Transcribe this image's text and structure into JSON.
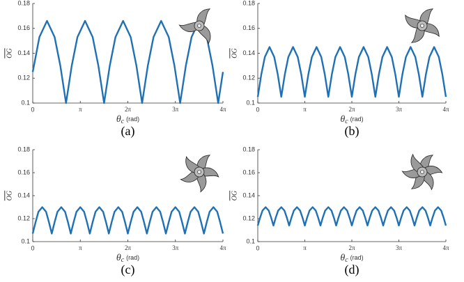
{
  "chart_data": [
    {
      "type": "line",
      "caption": "(a)",
      "ylabel": "OG",
      "xlabel": {
        "symbol": "θ",
        "subscript": "c",
        "unit": "(rad)"
      },
      "color": "#1f70b4",
      "xlim": [
        0,
        4
      ],
      "ylim": [
        0.1,
        0.18
      ],
      "xticks": [
        0,
        {
          "value": 1,
          "label": "π"
        },
        {
          "value": 2,
          "label": "2π"
        },
        {
          "value": 3,
          "label": "3π"
        },
        {
          "value": 4,
          "label": "4π"
        }
      ],
      "yticks": [
        0.1,
        0.12,
        0.14,
        0.16,
        0.18
      ],
      "x": [
        0,
        0.14,
        0.3,
        0.46,
        0.58,
        0.7,
        0.82,
        0.94,
        1.1,
        1.26,
        1.38,
        1.5,
        1.62,
        1.74,
        1.9,
        2.06,
        2.18,
        2.3,
        2.42,
        2.54,
        2.7,
        2.86,
        2.98,
        3.1,
        3.22,
        3.34,
        3.5,
        3.66,
        3.78,
        3.9,
        4
      ],
      "values": [
        0.125,
        0.153,
        0.166,
        0.153,
        0.13,
        0.1,
        0.13,
        0.153,
        0.166,
        0.153,
        0.13,
        0.1,
        0.13,
        0.153,
        0.166,
        0.153,
        0.13,
        0.1,
        0.13,
        0.153,
        0.166,
        0.153,
        0.13,
        0.1,
        0.13,
        0.153,
        0.166,
        0.153,
        0.13,
        0.1,
        0.125
      ]
    },
    {
      "type": "line",
      "caption": "(b)",
      "ylabel": "OG",
      "xlabel": {
        "symbol": "θ",
        "subscript": "c",
        "unit": "(rad)"
      },
      "color": "#1f70b4",
      "xlim": [
        0,
        4
      ],
      "ylim": [
        0.1,
        0.18
      ],
      "xticks": [
        0,
        {
          "value": 1,
          "label": "π"
        },
        {
          "value": 2,
          "label": "2π"
        },
        {
          "value": 3,
          "label": "3π"
        },
        {
          "value": 4,
          "label": "4π"
        }
      ],
      "yticks": [
        0.1,
        0.12,
        0.14,
        0.16,
        0.18
      ],
      "x": [
        0,
        0.075,
        0.15,
        0.25,
        0.35,
        0.425,
        0.5,
        0.575,
        0.65,
        0.75,
        0.85,
        0.925,
        1,
        1.075,
        1.15,
        1.25,
        1.35,
        1.425,
        1.5,
        1.575,
        1.65,
        1.75,
        1.85,
        1.925,
        2,
        2.075,
        2.15,
        2.25,
        2.35,
        2.425,
        2.5,
        2.575,
        2.65,
        2.75,
        2.85,
        2.925,
        3,
        3.075,
        3.15,
        3.25,
        3.35,
        3.425,
        3.5,
        3.575,
        3.65,
        3.75,
        3.85,
        3.925,
        4
      ],
      "values": [
        0.105,
        0.123,
        0.137,
        0.145,
        0.137,
        0.123,
        0.105,
        0.123,
        0.137,
        0.145,
        0.137,
        0.123,
        0.105,
        0.123,
        0.137,
        0.145,
        0.137,
        0.123,
        0.105,
        0.123,
        0.137,
        0.145,
        0.137,
        0.123,
        0.105,
        0.123,
        0.137,
        0.145,
        0.137,
        0.123,
        0.105,
        0.123,
        0.137,
        0.145,
        0.137,
        0.123,
        0.105,
        0.123,
        0.137,
        0.145,
        0.137,
        0.123,
        0.105,
        0.123,
        0.137,
        0.145,
        0.137,
        0.123,
        0.105
      ]
    },
    {
      "type": "line",
      "caption": "(c)",
      "ylabel": "OG",
      "xlabel": {
        "symbol": "θ",
        "subscript": "c",
        "unit": "(rad)"
      },
      "color": "#1f70b4",
      "xlim": [
        0,
        4
      ],
      "ylim": [
        0.1,
        0.18
      ],
      "xticks": [
        0,
        {
          "value": 1,
          "label": "π"
        },
        {
          "value": 2,
          "label": "2π"
        },
        {
          "value": 3,
          "label": "3π"
        },
        {
          "value": 4,
          "label": "4π"
        }
      ],
      "yticks": [
        0.1,
        0.12,
        0.14,
        0.16,
        0.18
      ],
      "x": [
        0,
        0.06,
        0.12,
        0.2,
        0.28,
        0.34,
        0.4,
        0.46,
        0.52,
        0.6,
        0.68,
        0.74,
        0.8,
        0.86,
        0.92,
        1,
        1.08,
        1.14,
        1.2,
        1.26,
        1.32,
        1.4,
        1.48,
        1.54,
        1.6,
        1.66,
        1.72,
        1.8,
        1.88,
        1.94,
        2,
        2.06,
        2.12,
        2.2,
        2.28,
        2.34,
        2.4,
        2.46,
        2.52,
        2.6,
        2.68,
        2.74,
        2.8,
        2.86,
        2.92,
        3,
        3.08,
        3.14,
        3.2,
        3.26,
        3.32,
        3.4,
        3.48,
        3.54,
        3.6,
        3.66,
        3.72,
        3.8,
        3.88,
        3.94,
        4
      ],
      "values": [
        0.107,
        0.117,
        0.126,
        0.13,
        0.126,
        0.117,
        0.107,
        0.117,
        0.126,
        0.13,
        0.126,
        0.117,
        0.107,
        0.117,
        0.126,
        0.13,
        0.126,
        0.117,
        0.107,
        0.117,
        0.126,
        0.13,
        0.126,
        0.117,
        0.107,
        0.117,
        0.126,
        0.13,
        0.126,
        0.117,
        0.107,
        0.117,
        0.126,
        0.13,
        0.126,
        0.117,
        0.107,
        0.117,
        0.126,
        0.13,
        0.126,
        0.117,
        0.107,
        0.117,
        0.126,
        0.13,
        0.126,
        0.117,
        0.107,
        0.117,
        0.126,
        0.13,
        0.126,
        0.117,
        0.107,
        0.117,
        0.126,
        0.13,
        0.126,
        0.117,
        0.107
      ]
    },
    {
      "type": "line",
      "caption": "(d)",
      "ylabel": "OG",
      "xlabel": {
        "symbol": "θ",
        "subscript": "c",
        "unit": "(rad)"
      },
      "color": "#1f70b4",
      "xlim": [
        0,
        4
      ],
      "ylim": [
        0.1,
        0.18
      ],
      "xticks": [
        0,
        {
          "value": 1,
          "label": "π"
        },
        {
          "value": 2,
          "label": "2π"
        },
        {
          "value": 3,
          "label": "3π"
        },
        {
          "value": 4,
          "label": "4π"
        }
      ],
      "yticks": [
        0.1,
        0.12,
        0.14,
        0.16,
        0.18
      ],
      "x": [
        0,
        0.05,
        0.1,
        0.167,
        0.233,
        0.283,
        0.333,
        0.383,
        0.433,
        0.5,
        0.567,
        0.617,
        0.667,
        0.717,
        0.767,
        0.833,
        0.9,
        0.95,
        1,
        1.05,
        1.1,
        1.167,
        1.233,
        1.283,
        1.333,
        1.383,
        1.433,
        1.5,
        1.567,
        1.617,
        1.667,
        1.717,
        1.767,
        1.833,
        1.9,
        1.95,
        2,
        2.05,
        2.1,
        2.167,
        2.233,
        2.283,
        2.333,
        2.383,
        2.433,
        2.5,
        2.567,
        2.617,
        2.667,
        2.717,
        2.767,
        2.833,
        2.9,
        2.95,
        3,
        3.05,
        3.1,
        3.167,
        3.233,
        3.283,
        3.333,
        3.383,
        3.433,
        3.5,
        3.567,
        3.617,
        3.667,
        3.717,
        3.767,
        3.833,
        3.9,
        3.95,
        4
      ],
      "values": [
        0.114,
        0.121,
        0.127,
        0.13,
        0.127,
        0.121,
        0.114,
        0.121,
        0.127,
        0.13,
        0.127,
        0.121,
        0.114,
        0.121,
        0.127,
        0.13,
        0.127,
        0.121,
        0.114,
        0.121,
        0.127,
        0.13,
        0.127,
        0.121,
        0.114,
        0.121,
        0.127,
        0.13,
        0.127,
        0.121,
        0.114,
        0.121,
        0.127,
        0.13,
        0.127,
        0.121,
        0.114,
        0.121,
        0.127,
        0.13,
        0.127,
        0.121,
        0.114,
        0.121,
        0.127,
        0.13,
        0.127,
        0.121,
        0.114,
        0.121,
        0.127,
        0.13,
        0.127,
        0.121,
        0.114,
        0.121,
        0.127,
        0.13,
        0.127,
        0.121,
        0.114,
        0.121,
        0.127,
        0.13,
        0.127,
        0.121,
        0.114,
        0.121,
        0.127,
        0.13,
        0.127,
        0.121,
        0.114
      ]
    }
  ]
}
